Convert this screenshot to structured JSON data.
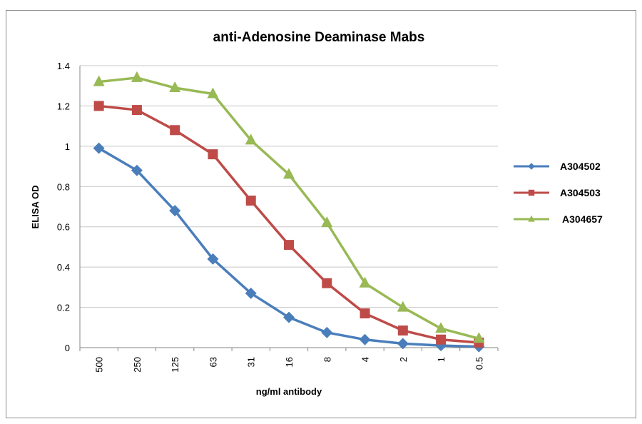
{
  "chart_data": {
    "type": "line",
    "title": "anti-Adenosine Deaminase Mabs",
    "xlabel": "ng/ml antibody",
    "ylabel": "ELISA OD",
    "categories": [
      "500",
      "250",
      "125",
      "63",
      "31",
      "16",
      "8",
      "4",
      "2",
      "1",
      "0.5"
    ],
    "ylim": [
      0,
      1.4
    ],
    "yticks": [
      "0",
      "0.2",
      "0.4",
      "0.6",
      "0.8",
      "1",
      "1.2",
      "1.4"
    ],
    "grid": true,
    "legend": "right",
    "series": [
      {
        "name": "A304502",
        "color": "#4a7ebb",
        "marker": "diamond",
        "values": [
          0.99,
          0.88,
          0.68,
          0.44,
          0.27,
          0.15,
          0.075,
          0.04,
          0.02,
          0.01,
          0.005
        ]
      },
      {
        "name": "A304503",
        "color": "#be4b48",
        "marker": "square",
        "values": [
          1.2,
          1.18,
          1.08,
          0.96,
          0.73,
          0.51,
          0.32,
          0.17,
          0.085,
          0.04,
          0.025
        ]
      },
      {
        "name": "A304657",
        "color": "#98b954",
        "marker": "triangle",
        "values": [
          1.32,
          1.34,
          1.29,
          1.26,
          1.03,
          0.86,
          0.62,
          0.32,
          0.2,
          0.095,
          0.045
        ]
      }
    ]
  }
}
